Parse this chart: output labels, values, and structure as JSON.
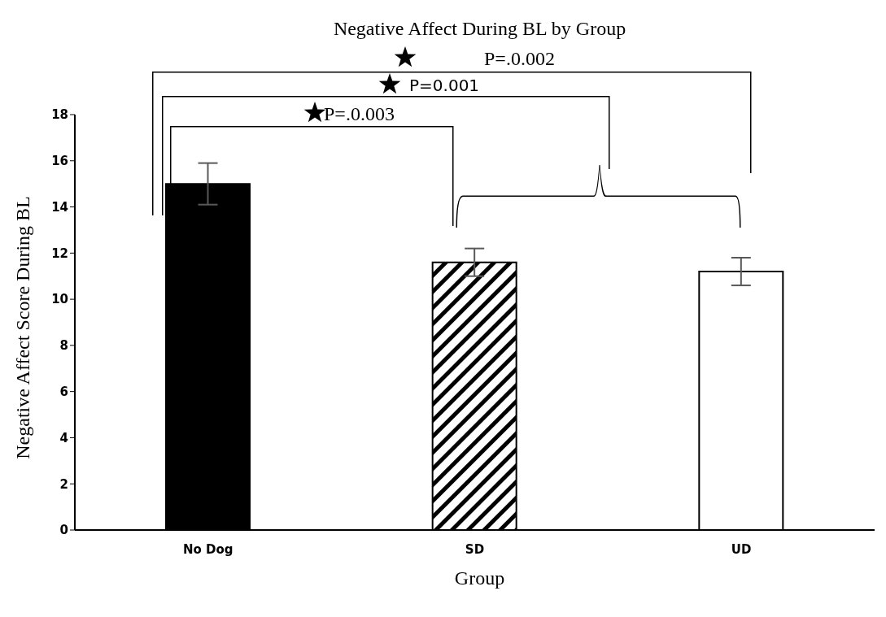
{
  "chart_data": {
    "type": "bar",
    "title": "Negative Affect During BL by Group",
    "xlabel": "Group",
    "ylabel": "Negative Affect Score During BL",
    "categories": [
      "No Dog",
      "SD",
      "UD"
    ],
    "values": [
      15,
      11.6,
      11.2
    ],
    "errors": [
      0.9,
      0.6,
      0.6
    ],
    "colors": [
      "#000000",
      "#000000",
      "#ffffff"
    ],
    "ylim": [
      0,
      18
    ],
    "yticks": [
      0,
      2,
      4,
      6,
      8,
      10,
      12,
      14,
      16,
      18
    ],
    "grid": false,
    "legend": false,
    "annotations": [
      "P=.0.002",
      "P=0.001",
      "P=.0.003"
    ]
  }
}
